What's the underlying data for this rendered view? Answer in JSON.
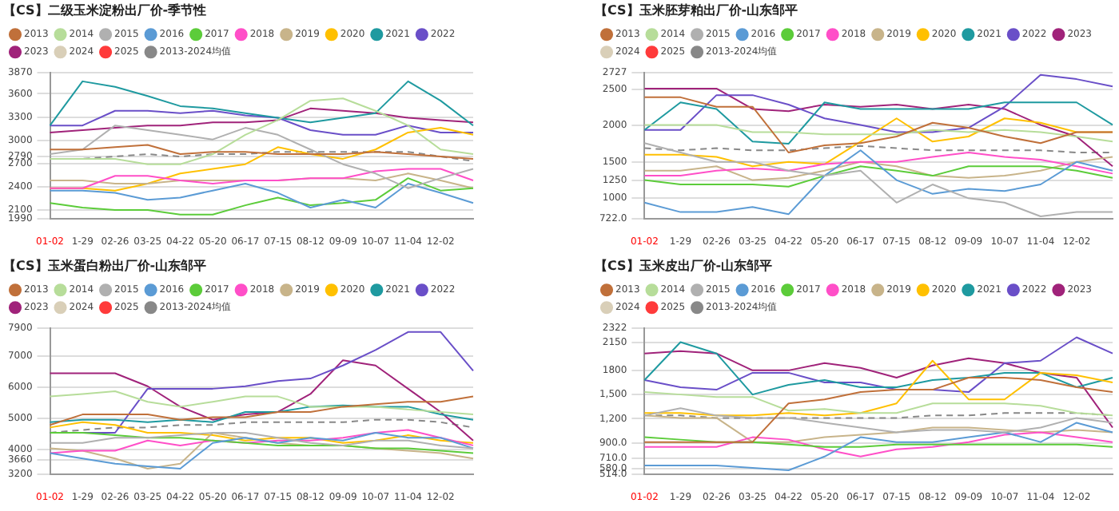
{
  "chart_data": [
    {
      "type": "line",
      "title": "【CS】二级玉米淀粉出厂价-季节性",
      "categories": [
        "01-02",
        "1-29",
        "02-26",
        "03-25",
        "04-22",
        "05-20",
        "06-17",
        "07-15",
        "08-12",
        "09-09",
        "10-07",
        "11-04",
        "12-02",
        null
      ],
      "ylim": [
        1990,
        3870
      ],
      "yticks": [
        1990,
        2100,
        2400,
        2700,
        2790,
        3000,
        3300,
        3600,
        3870
      ],
      "grid": "y",
      "legend": "top",
      "marker": "none",
      "series": [
        {
          "name": "2013",
          "color": "#c0703a",
          "values": [
            2880,
            2880,
            2910,
            2940,
            2820,
            2850,
            2850,
            2820,
            2820,
            2820,
            2850,
            2820,
            2790,
            2760
          ]
        },
        {
          "name": "2014",
          "color": "#b7dd9a",
          "values": [
            2760,
            2760,
            2760,
            2690,
            2690,
            2820,
            3070,
            3260,
            3510,
            3540,
            3380,
            3190,
            2880,
            2820
          ]
        },
        {
          "name": "2015",
          "color": "#b0b0b0",
          "values": [
            2820,
            2880,
            3190,
            3130,
            3070,
            3010,
            3160,
            3070,
            2880,
            2690,
            2570,
            2380,
            2510,
            2630
          ]
        },
        {
          "name": "2016",
          "color": "#5b9bd5",
          "values": [
            2350,
            2350,
            2320,
            2230,
            2260,
            2350,
            2440,
            2320,
            2130,
            2230,
            2130,
            2440,
            2320,
            2190
          ]
        },
        {
          "name": "2017",
          "color": "#5ccc3a",
          "values": [
            2190,
            2130,
            2100,
            2100,
            2040,
            2040,
            2160,
            2260,
            2160,
            2190,
            2230,
            2510,
            2350,
            2380
          ]
        },
        {
          "name": "2018",
          "color": "#ff4fc8",
          "values": [
            2380,
            2380,
            2540,
            2540,
            2480,
            2440,
            2480,
            2480,
            2510,
            2510,
            2600,
            2630,
            2630,
            2480
          ]
        },
        {
          "name": "2019",
          "color": "#c8b48a",
          "values": [
            2480,
            2480,
            2440,
            2440,
            2480,
            2480,
            2480,
            2480,
            2510,
            2510,
            2480,
            2570,
            2480,
            2380
          ]
        },
        {
          "name": "2020",
          "color": "#ffc000",
          "values": [
            2380,
            2380,
            2350,
            2440,
            2570,
            2630,
            2690,
            2910,
            2820,
            2760,
            2880,
            3100,
            3160,
            3070
          ]
        },
        {
          "name": "2021",
          "color": "#1f9aa0",
          "values": [
            3190,
            3760,
            3690,
            3570,
            3440,
            3410,
            3350,
            3290,
            3230,
            3290,
            3350,
            3760,
            3510,
            3190
          ]
        },
        {
          "name": "2022",
          "color": "#6a4fc8",
          "values": [
            3190,
            3190,
            3380,
            3380,
            3350,
            3380,
            3320,
            3290,
            3130,
            3070,
            3070,
            3190,
            3100,
            3100
          ]
        },
        {
          "name": "2023",
          "color": "#a0237a",
          "values": [
            3100,
            3130,
            3160,
            3190,
            3190,
            3230,
            3230,
            3260,
            3410,
            3380,
            3350,
            3290,
            3260,
            3230
          ]
        },
        {
          "name": "2024",
          "color": "#d9cfb8",
          "values": [
            null,
            null,
            null,
            null,
            null,
            null,
            null,
            null,
            null,
            null,
            null,
            null,
            null,
            null
          ]
        },
        {
          "name": "2025",
          "color": "#ff3b3b",
          "values": [
            null,
            null,
            null,
            null,
            null,
            null,
            null,
            null,
            null,
            null,
            null,
            null,
            null,
            null
          ]
        },
        {
          "name": "2013-2024均值",
          "color": "#888888",
          "line_style": "dashed",
          "values": [
            2760,
            2760,
            2790,
            2820,
            2790,
            2820,
            2820,
            2850,
            2850,
            2850,
            2850,
            2850,
            2790,
            2730
          ]
        }
      ]
    },
    {
      "type": "line",
      "title": "【CS】玉米胚芽粕出厂价-山东邹平",
      "categories": [
        "01-02",
        "1-29",
        "02-26",
        "03-25",
        "04-22",
        "05-20",
        "06-17",
        "07-15",
        "08-12",
        "09-09",
        "10-07",
        "11-04",
        "12-02",
        null
      ],
      "ylim": [
        722,
        2727
      ],
      "yticks": [
        {
          "value": 722,
          "label": "722.0"
        },
        1000,
        1250,
        1500,
        2000,
        2500,
        2727
      ],
      "grid": "y",
      "legend": "top",
      "marker": "none",
      "series": [
        {
          "name": "2013",
          "color": "#c0703a",
          "values": [
            2390,
            2390,
            2260,
            2260,
            1630,
            1730,
            1760,
            1850,
            2040,
            1970,
            1850,
            1760,
            1910,
            1910
          ]
        },
        {
          "name": "2014",
          "color": "#b7dd9a",
          "values": [
            2010,
            2010,
            2010,
            1910,
            1910,
            1880,
            1880,
            1880,
            1940,
            1910,
            1940,
            1910,
            1850,
            1780
          ]
        },
        {
          "name": "2015",
          "color": "#b0b0b0",
          "values": [
            1760,
            1630,
            1500,
            1500,
            1380,
            1310,
            1380,
            940,
            1190,
            1000,
            940,
            750,
            810,
            810
          ]
        },
        {
          "name": "2016",
          "color": "#5b9bd5",
          "values": [
            940,
            810,
            810,
            880,
            780,
            1310,
            1660,
            1250,
            1060,
            1130,
            1100,
            1190,
            1500,
            1380
          ]
        },
        {
          "name": "2017",
          "color": "#5ccc3a",
          "values": [
            1250,
            1190,
            1190,
            1190,
            1160,
            1310,
            1440,
            1380,
            1310,
            1440,
            1440,
            1440,
            1380,
            1280
          ]
        },
        {
          "name": "2018",
          "color": "#ff4fc8",
          "values": [
            1310,
            1310,
            1380,
            1410,
            1380,
            1470,
            1500,
            1500,
            1570,
            1630,
            1570,
            1530,
            1440,
            1340
          ]
        },
        {
          "name": "2019",
          "color": "#c8b48a",
          "values": [
            1380,
            1380,
            1440,
            1250,
            1280,
            1380,
            1500,
            1440,
            1310,
            1280,
            1310,
            1380,
            1500,
            1570
          ]
        },
        {
          "name": "2020",
          "color": "#ffc000",
          "values": [
            1600,
            1600,
            1570,
            1440,
            1500,
            1470,
            1780,
            2100,
            1780,
            1850,
            2100,
            2040,
            1910,
            1910
          ]
        },
        {
          "name": "2021",
          "color": "#1f9aa0",
          "values": [
            1940,
            2320,
            2230,
            1780,
            1750,
            2320,
            2230,
            2230,
            2230,
            2230,
            2320,
            2320,
            2320,
            2010
          ]
        },
        {
          "name": "2022",
          "color": "#6a4fc8",
          "values": [
            1940,
            1940,
            2420,
            2420,
            2290,
            2100,
            2010,
            1910,
            1910,
            1970,
            2260,
            2700,
            2640,
            2540
          ]
        },
        {
          "name": "2023",
          "color": "#a0237a",
          "values": [
            2510,
            2510,
            2510,
            2230,
            2200,
            2290,
            2260,
            2290,
            2230,
            2290,
            2230,
            2010,
            1850,
            1440
          ]
        },
        {
          "name": "2024",
          "color": "#d9cfb8",
          "values": [
            null,
            null,
            null,
            null,
            null,
            null,
            null,
            null,
            null,
            null,
            null,
            null,
            null,
            null
          ]
        },
        {
          "name": "2025",
          "color": "#ff3b3b",
          "values": [
            null,
            null,
            null,
            null,
            null,
            null,
            null,
            null,
            null,
            null,
            null,
            null,
            null,
            null
          ]
        },
        {
          "name": "2013-2024均值",
          "color": "#888888",
          "line_style": "dashed",
          "values": [
            1690,
            1660,
            1690,
            1660,
            1660,
            1690,
            1720,
            1690,
            1660,
            1660,
            1660,
            1660,
            1630,
            1630
          ]
        }
      ]
    },
    {
      "type": "line",
      "title": "【CS】玉米蛋白粉出厂价-山东邹平",
      "categories": [
        "01-02",
        "1-29",
        "02-26",
        "03-25",
        "04-22",
        "05-20",
        "06-17",
        "07-15",
        "08-12",
        "09-09",
        "10-07",
        "11-04",
        "12-02",
        null
      ],
      "ylim": [
        3200,
        7900
      ],
      "yticks": [
        3200,
        3660,
        4000,
        5000,
        6000,
        7000,
        7900
      ],
      "grid": "y",
      "legend": "top",
      "marker": "none",
      "series": [
        {
          "name": "2013",
          "color": "#c0703a",
          "values": [
            4780,
            5120,
            5120,
            5120,
            4950,
            5030,
            5030,
            5200,
            5200,
            5370,
            5450,
            5530,
            5530,
            5700
          ]
        },
        {
          "name": "2014",
          "color": "#b7dd9a",
          "values": [
            5700,
            5780,
            5870,
            5530,
            5370,
            5530,
            5700,
            5700,
            5370,
            5370,
            5370,
            5280,
            5200,
            5120
          ]
        },
        {
          "name": "2015",
          "color": "#b0b0b0",
          "values": [
            4200,
            4200,
            4370,
            4370,
            4450,
            4530,
            4530,
            4370,
            4200,
            4120,
            4280,
            4280,
            4120,
            4030
          ]
        },
        {
          "name": "2016",
          "color": "#5b9bd5",
          "values": [
            3870,
            3700,
            3530,
            3450,
            3370,
            4200,
            4370,
            4200,
            4370,
            4280,
            4530,
            4370,
            4370,
            4030
          ]
        },
        {
          "name": "2017",
          "color": "#5ccc3a",
          "values": [
            4530,
            4530,
            4450,
            4370,
            4370,
            4280,
            4200,
            4120,
            4120,
            4120,
            4030,
            4030,
            3950,
            3870
          ]
        },
        {
          "name": "2018",
          "color": "#ff4fc8",
          "values": [
            3870,
            3950,
            3950,
            4280,
            4120,
            4280,
            4200,
            4280,
            4280,
            4370,
            4530,
            4620,
            4370,
            4120
          ]
        },
        {
          "name": "2019",
          "color": "#c8b48a",
          "values": [
            4030,
            3950,
            3700,
            3370,
            3530,
            4530,
            4370,
            4200,
            4120,
            4120,
            4030,
            3950,
            3870,
            3700
          ]
        },
        {
          "name": "2020",
          "color": "#ffc000",
          "values": [
            4700,
            4870,
            4780,
            4530,
            4530,
            4450,
            4280,
            4370,
            4370,
            4200,
            4280,
            4450,
            4280,
            4200
          ]
        },
        {
          "name": "2021",
          "color": "#1f9aa0",
          "values": [
            4870,
            4950,
            4950,
            4870,
            4950,
            4870,
            5200,
            5200,
            5370,
            5410,
            5370,
            5370,
            5120,
            4950
          ]
        },
        {
          "name": "2022",
          "color": "#6a4fc8",
          "values": [
            4530,
            4530,
            4530,
            5950,
            5950,
            5950,
            6030,
            6200,
            6280,
            6700,
            7200,
            7780,
            7780,
            6530
          ]
        },
        {
          "name": "2023",
          "color": "#a0237a",
          "values": [
            6450,
            6450,
            6450,
            6030,
            5370,
            4950,
            5120,
            5200,
            5780,
            6870,
            6700,
            5950,
            5200,
            4280
          ]
        },
        {
          "name": "2024",
          "color": "#d9cfb8",
          "values": [
            null,
            null,
            null,
            null,
            null,
            null,
            null,
            null,
            null,
            null,
            null,
            null,
            null,
            null
          ]
        },
        {
          "name": "2025",
          "color": "#ff3b3b",
          "values": [
            null,
            null,
            null,
            null,
            null,
            null,
            null,
            null,
            null,
            null,
            null,
            null,
            null,
            null
          ]
        },
        {
          "name": "2013-2024均值",
          "color": "#888888",
          "line_style": "dashed",
          "values": [
            4530,
            4620,
            4700,
            4700,
            4780,
            4780,
            4870,
            4870,
            4870,
            4870,
            4950,
            4950,
            4870,
            4700
          ]
        }
      ]
    },
    {
      "type": "line",
      "title": "【CS】玉米皮出厂价-山东邹平",
      "categories": [
        "01-02",
        "1-29",
        "02-26",
        "03-25",
        "04-22",
        "05-20",
        "06-17",
        "07-15",
        "08-12",
        "09-09",
        "10-07",
        "11-04",
        "12-02",
        null
      ],
      "ylim": [
        514,
        2322
      ],
      "yticks": [
        {
          "value": 514,
          "label": "514.0"
        },
        {
          "value": 580,
          "label": "580.0"
        },
        {
          "value": 710,
          "label": "710.0"
        },
        {
          "value": 900,
          "label": "900.0"
        },
        {
          "value": 1200,
          "label": "1,200"
        },
        {
          "value": 1500,
          "label": "1,500"
        },
        1800,
        2150,
        2322
      ],
      "grid": "y",
      "legend": "top",
      "marker": "none",
      "series": [
        {
          "name": "2013",
          "color": "#c0703a",
          "values": [
            910,
            910,
            910,
            910,
            1390,
            1440,
            1530,
            1560,
            1560,
            1710,
            1710,
            1680,
            1590,
            1530
          ]
        },
        {
          "name": "2014",
          "color": "#b7dd9a",
          "values": [
            1530,
            1500,
            1470,
            1470,
            1300,
            1320,
            1270,
            1270,
            1390,
            1390,
            1390,
            1360,
            1270,
            1240
          ]
        },
        {
          "name": "2015",
          "color": "#b0b0b0",
          "values": [
            1240,
            1330,
            1240,
            1210,
            1210,
            1150,
            1090,
            1030,
            1060,
            1060,
            1030,
            1090,
            1210,
            1150
          ]
        },
        {
          "name": "2016",
          "color": "#5b9bd5",
          "values": [
            620,
            620,
            620,
            590,
            560,
            730,
            970,
            910,
            910,
            970,
            1030,
            910,
            1150,
            1030
          ]
        },
        {
          "name": "2017",
          "color": "#5ccc3a",
          "values": [
            970,
            940,
            910,
            910,
            880,
            850,
            850,
            880,
            880,
            880,
            880,
            880,
            880,
            850
          ]
        },
        {
          "name": "2018",
          "color": "#ff4fc8",
          "values": [
            850,
            850,
            850,
            970,
            940,
            820,
            730,
            820,
            850,
            910,
            1000,
            1030,
            970,
            910
          ]
        },
        {
          "name": "2019",
          "color": "#c8b48a",
          "values": [
            1240,
            1210,
            1210,
            910,
            910,
            970,
            1000,
            1030,
            1090,
            1090,
            1060,
            1030,
            1060,
            1030
          ]
        },
        {
          "name": "2020",
          "color": "#ffc000",
          "values": [
            1270,
            1270,
            1240,
            1240,
            1270,
            1240,
            1270,
            1390,
            1920,
            1440,
            1440,
            1770,
            1740,
            1650
          ]
        },
        {
          "name": "2021",
          "color": "#1f9aa0",
          "values": [
            1680,
            2150,
            2010,
            1500,
            1620,
            1680,
            1590,
            1590,
            1680,
            1710,
            1770,
            1770,
            1590,
            1710
          ]
        },
        {
          "name": "2022",
          "color": "#6a4fc8",
          "values": [
            1680,
            1590,
            1560,
            1770,
            1770,
            1650,
            1650,
            1560,
            1560,
            1530,
            1890,
            1920,
            2210,
            2010
          ]
        },
        {
          "name": "2023",
          "color": "#a0237a",
          "values": [
            2010,
            2040,
            2010,
            1800,
            1800,
            1890,
            1830,
            1710,
            1860,
            1950,
            1890,
            1770,
            1710,
            1090
          ]
        },
        {
          "name": "2024",
          "color": "#d9cfb8",
          "values": [
            null,
            null,
            null,
            null,
            null,
            null,
            null,
            null,
            null,
            null,
            null,
            null,
            null,
            null
          ]
        },
        {
          "name": "2025",
          "color": "#ff3b3b",
          "values": [
            null,
            null,
            null,
            null,
            null,
            null,
            null,
            null,
            null,
            null,
            null,
            null,
            null,
            null
          ]
        },
        {
          "name": "2013-2024均值",
          "color": "#888888",
          "line_style": "dashed",
          "values": [
            1240,
            1240,
            1210,
            1210,
            1210,
            1210,
            1210,
            1210,
            1240,
            1240,
            1270,
            1270,
            1270,
            1240
          ]
        }
      ]
    }
  ]
}
